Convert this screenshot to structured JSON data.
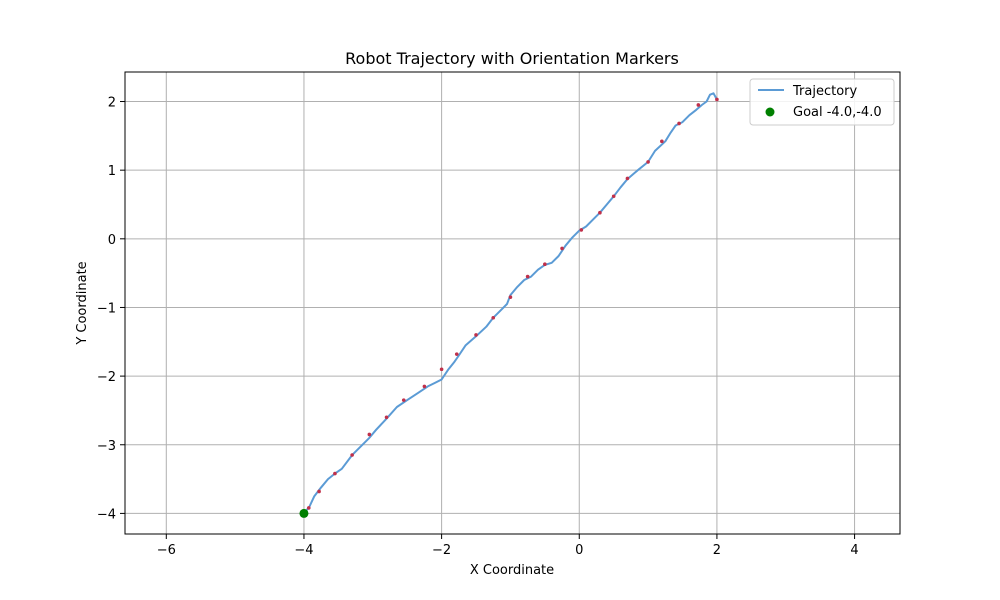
{
  "chart_data": {
    "type": "line",
    "title": "Robot Trajectory with Orientation Markers",
    "xlabel": "X Coordinate",
    "ylabel": "Y Coordinate",
    "xlim": [
      -6.6,
      4.66
    ],
    "ylim": [
      -4.3,
      2.43
    ],
    "xticks": [
      -6,
      -4,
      -2,
      0,
      2,
      4
    ],
    "yticks": [
      -4,
      -3,
      -2,
      -1,
      0,
      1,
      2
    ],
    "grid": true,
    "legend_position": "top-right",
    "colors": {
      "trajectory": "#5b9bd5",
      "goal": "#008000",
      "marker": "#c0304a",
      "grid": "#b0b0b0",
      "axis": "#000000"
    },
    "series": [
      {
        "name": "Trajectory",
        "x": [
          2.0,
          1.95,
          1.9,
          1.85,
          1.78,
          1.7,
          1.6,
          1.5,
          1.4,
          1.33,
          1.25,
          1.1,
          1.0,
          0.85,
          0.7,
          0.6,
          0.5,
          0.4,
          0.3,
          0.2,
          0.1,
          0.0,
          -0.1,
          -0.2,
          -0.3,
          -0.4,
          -0.5,
          -0.6,
          -0.7,
          -0.8,
          -0.9,
          -1.0,
          -1.05,
          -1.15,
          -1.25,
          -1.35,
          -1.5,
          -1.65,
          -1.75,
          -1.82,
          -1.9,
          -2.0,
          -2.1,
          -2.2,
          -2.35,
          -2.5,
          -2.65,
          -2.8,
          -2.95,
          -3.05,
          -3.2,
          -3.3,
          -3.45,
          -3.55,
          -3.65,
          -3.75,
          -3.85,
          -3.92,
          -4.0
        ],
        "y": [
          2.03,
          2.12,
          2.1,
          2.0,
          1.95,
          1.88,
          1.8,
          1.7,
          1.65,
          1.55,
          1.42,
          1.28,
          1.12,
          1.0,
          0.87,
          0.75,
          0.62,
          0.5,
          0.38,
          0.28,
          0.18,
          0.12,
          0.02,
          -0.1,
          -0.25,
          -0.35,
          -0.38,
          -0.45,
          -0.55,
          -0.6,
          -0.7,
          -0.82,
          -0.95,
          -1.05,
          -1.15,
          -1.28,
          -1.42,
          -1.55,
          -1.7,
          -1.8,
          -1.9,
          -2.05,
          -2.1,
          -2.15,
          -2.25,
          -2.35,
          -2.45,
          -2.62,
          -2.78,
          -2.9,
          -3.05,
          -3.15,
          -3.35,
          -3.42,
          -3.5,
          -3.62,
          -3.75,
          -3.9,
          -4.0
        ]
      }
    ],
    "orientation_markers": {
      "x": [
        2.0,
        1.73,
        1.45,
        1.2,
        1.0,
        0.7,
        0.5,
        0.3,
        0.03,
        -0.25,
        -0.5,
        -0.75,
        -1.0,
        -1.25,
        -1.5,
        -1.78,
        -2.0,
        -2.25,
        -2.55,
        -2.8,
        -3.05,
        -3.3,
        -3.55,
        -3.78,
        -3.93
      ],
      "y": [
        2.03,
        1.95,
        1.68,
        1.42,
        1.12,
        0.88,
        0.62,
        0.38,
        0.13,
        -0.14,
        -0.37,
        -0.55,
        -0.85,
        -1.15,
        -1.4,
        -1.68,
        -1.9,
        -2.15,
        -2.35,
        -2.6,
        -2.85,
        -3.15,
        -3.42,
        -3.68,
        -3.92
      ]
    },
    "goal": {
      "name": "Goal -4.0,-4.0",
      "x": -4.0,
      "y": -4.0
    }
  }
}
